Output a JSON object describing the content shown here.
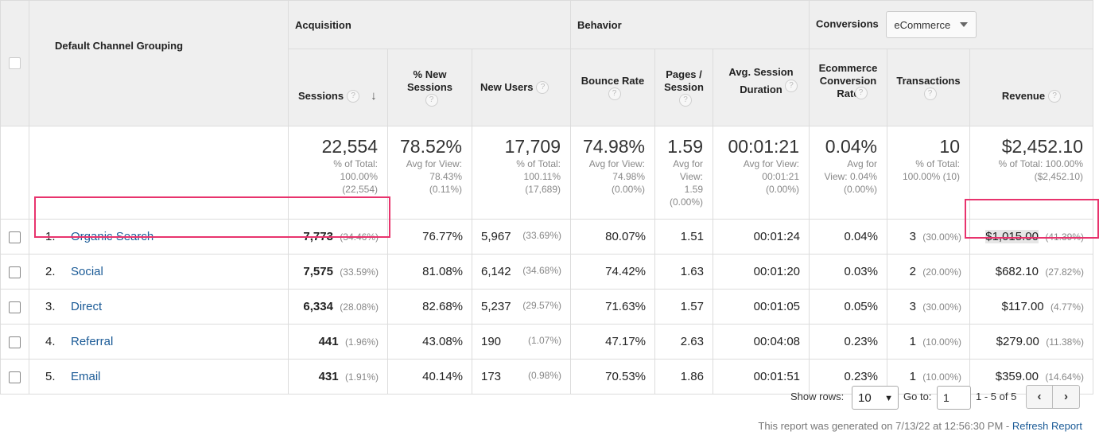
{
  "header": {
    "dimension": "Default Channel Grouping",
    "groups": {
      "acquisition": "Acquisition",
      "behavior": "Behavior",
      "conversions": "Conversions"
    },
    "conversion_select": "eCommerce",
    "columns": {
      "sessions": "Sessions",
      "pct_new_sessions": "% New Sessions",
      "new_users": "New Users",
      "bounce_rate": "Bounce Rate",
      "pages_session": "Pages / Session",
      "avg_session_duration": "Avg. Session Duration",
      "ecom_conv_rate": "Ecommerce Conversion Rate",
      "transactions": "Transactions",
      "revenue": "Revenue"
    },
    "help_glyph": "?"
  },
  "totals": {
    "sessions": {
      "big": "22,554",
      "sub": [
        "% of Total:",
        "100.00%",
        "(22,554)"
      ]
    },
    "pct_new_sessions": {
      "big": "78.52%",
      "sub": [
        "Avg for View:",
        "78.43%",
        "(0.11%)"
      ]
    },
    "new_users": {
      "big": "17,709",
      "sub": [
        "% of Total:",
        "100.11%",
        "(17,689)"
      ]
    },
    "bounce_rate": {
      "big": "74.98%",
      "sub": [
        "Avg for View:",
        "74.98%",
        "(0.00%)"
      ]
    },
    "pages_session": {
      "big": "1.59",
      "sub": [
        "Avg for",
        "View:",
        "1.59",
        "(0.00%)"
      ]
    },
    "avg_session_duration": {
      "big": "00:01:21",
      "sub": [
        "Avg for View:",
        "00:01:21",
        "(0.00%)"
      ]
    },
    "ecom_conv_rate": {
      "big": "0.04%",
      "sub": [
        "Avg for",
        "View: 0.04%",
        "(0.00%)"
      ]
    },
    "transactions": {
      "big": "10",
      "sub": [
        "% of Total:",
        "100.00% (10)"
      ]
    },
    "revenue": {
      "big": "$2,452.10",
      "sub": [
        "% of Total: 100.00%",
        "($2,452.10)"
      ]
    }
  },
  "rows": [
    {
      "idx": "1.",
      "channel": "Organic Search",
      "sessions": "7,773",
      "sessions_pct": "(34.46%)",
      "pct_new": "76.77%",
      "new_users": "5,967",
      "new_users_pct": "(33.69%)",
      "bounce": "80.07%",
      "pages": "1.51",
      "duration": "00:01:24",
      "conv": "0.04%",
      "transactions": "3",
      "transactions_pct": "(30.00%)",
      "revenue": "$1,015.00",
      "revenue_pct": "(41.39%)"
    },
    {
      "idx": "2.",
      "channel": "Social",
      "sessions": "7,575",
      "sessions_pct": "(33.59%)",
      "pct_new": "81.08%",
      "new_users": "6,142",
      "new_users_pct": "(34.68%)",
      "bounce": "74.42%",
      "pages": "1.63",
      "duration": "00:01:20",
      "conv": "0.03%",
      "transactions": "2",
      "transactions_pct": "(20.00%)",
      "revenue": "$682.10",
      "revenue_pct": "(27.82%)"
    },
    {
      "idx": "3.",
      "channel": "Direct",
      "sessions": "6,334",
      "sessions_pct": "(28.08%)",
      "pct_new": "82.68%",
      "new_users": "5,237",
      "new_users_pct": "(29.57%)",
      "bounce": "71.63%",
      "pages": "1.57",
      "duration": "00:01:05",
      "conv": "0.05%",
      "transactions": "3",
      "transactions_pct": "(30.00%)",
      "revenue": "$117.00",
      "revenue_pct": "(4.77%)"
    },
    {
      "idx": "4.",
      "channel": "Referral",
      "sessions": "441",
      "sessions_pct": "(1.96%)",
      "pct_new": "43.08%",
      "new_users": "190",
      "new_users_pct": "(1.07%)",
      "bounce": "47.17%",
      "pages": "2.63",
      "duration": "00:04:08",
      "conv": "0.23%",
      "transactions": "1",
      "transactions_pct": "(10.00%)",
      "revenue": "$279.00",
      "revenue_pct": "(11.38%)"
    },
    {
      "idx": "5.",
      "channel": "Email",
      "sessions": "431",
      "sessions_pct": "(1.91%)",
      "pct_new": "40.14%",
      "new_users": "173",
      "new_users_pct": "(0.98%)",
      "bounce": "70.53%",
      "pages": "1.86",
      "duration": "00:01:51",
      "conv": "0.23%",
      "transactions": "1",
      "transactions_pct": "(10.00%)",
      "revenue": "$359.00",
      "revenue_pct": "(14.64%)"
    }
  ],
  "footer": {
    "show_rows_label": "Show rows:",
    "show_rows_value": "10",
    "goto_label": "Go to:",
    "goto_value": "1",
    "range": "1 - 5 of 5",
    "generated_text": "This report was generated on 7/13/22 at 12:56:30 PM -",
    "refresh": "Refresh Report"
  },
  "colors": {
    "link": "#1a5a96",
    "highlight_box": "#e8336d",
    "header_bg": "#efefef"
  }
}
